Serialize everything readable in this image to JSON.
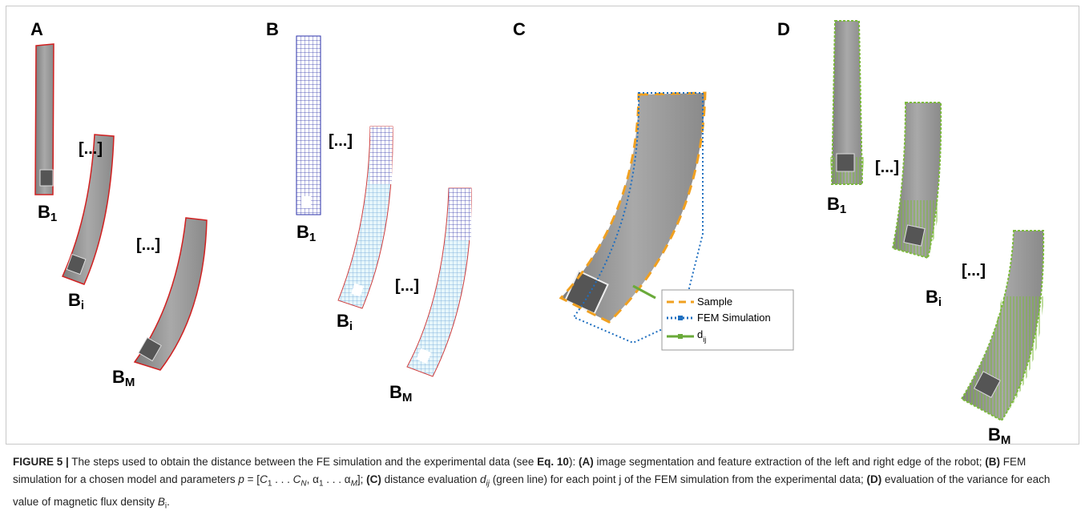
{
  "panels": [
    {
      "label": "A",
      "states": [
        {
          "base": "B",
          "sub": "1"
        },
        {
          "base": "B",
          "sub": "i"
        },
        {
          "base": "B",
          "sub": "M"
        }
      ],
      "ellipses": [
        "[...]",
        "[...]"
      ]
    },
    {
      "label": "B",
      "states": [
        {
          "base": "B",
          "sub": "1"
        },
        {
          "base": "B",
          "sub": "i"
        },
        {
          "base": "B",
          "sub": "M"
        }
      ],
      "ellipses": [
        "[...]",
        "[...]"
      ]
    },
    {
      "label": "C",
      "legend": [
        {
          "text": "Sample"
        },
        {
          "text": "FEM Simulation"
        },
        {
          "base": "d",
          "sub": "ij"
        }
      ]
    },
    {
      "label": "D",
      "states": [
        {
          "base": "B",
          "sub": "1"
        },
        {
          "base": "B",
          "sub": "i"
        },
        {
          "base": "B",
          "sub": "M"
        }
      ],
      "ellipses": [
        "[...]",
        "[...]"
      ]
    }
  ],
  "caption": [
    {
      "text": "FIGURE 5 |",
      "style": "bold"
    },
    {
      "text": " The steps used to obtain the distance between the FE simulation and the experimental data (see "
    },
    {
      "text": "Eq. 10",
      "style": "bold"
    },
    {
      "text": "): "
    },
    {
      "text": "(A)",
      "style": "bold"
    },
    {
      "text": " image segmentation and feature extraction of the left and right edge of the robot; "
    },
    {
      "text": "(B)",
      "style": "bold"
    },
    {
      "text": " FEM simulation for a chosen model and parameters "
    },
    {
      "text": "p",
      "style": "italic"
    },
    {
      "text": " = ["
    },
    {
      "text": "C",
      "style": "italic"
    },
    {
      "text": "1",
      "style": "sub"
    },
    {
      "text": " . . . "
    },
    {
      "text": "C",
      "style": "italic"
    },
    {
      "text": "N",
      "style": "sub-italic"
    },
    {
      "text": ", α"
    },
    {
      "text": "1",
      "style": "sub"
    },
    {
      "text": " . . . α"
    },
    {
      "text": "M",
      "style": "sub-italic"
    },
    {
      "text": "]; "
    },
    {
      "text": "(C)",
      "style": "bold"
    },
    {
      "text": " distance evaluation "
    },
    {
      "text": "d",
      "style": "italic"
    },
    {
      "text": "ij",
      "style": "sub-italic"
    },
    {
      "text": " (green line) for each point j of the FEM simulation from the experimental data; "
    },
    {
      "text": "(D)",
      "style": "bold"
    },
    {
      "text": " evaluation of the variance for each value of magnetic flux density "
    },
    {
      "text": "B",
      "style": "italic"
    },
    {
      "text": "i",
      "style": "sub"
    },
    {
      "text": "."
    }
  ]
}
